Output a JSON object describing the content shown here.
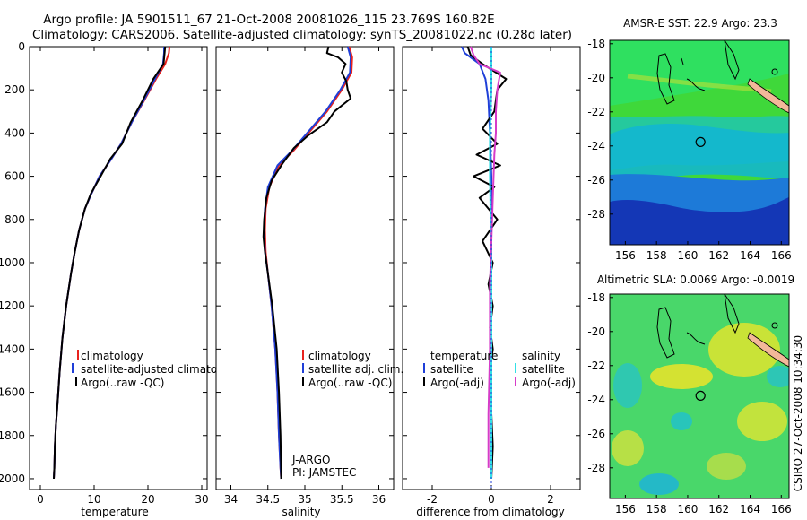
{
  "title_line1": "Argo profile: JA 5901511_67 21-Oct-2008 20081026_115 23.769S 160.82E",
  "title_line2": "Climatology: CARS2006. Satellite-adjusted climatology: synTS_20081022.nc (0.28d later)",
  "side_label": "CSIRO 27-Oct-2008 10:34:30",
  "colors": {
    "red": "#e8231e",
    "blue": "#1f3fd8",
    "black": "#000000",
    "cyan": "#33e0e6",
    "magenta": "#d63cc8",
    "coast": "#f3b89a"
  },
  "chart_data": [
    {
      "type": "line",
      "id": "temperature",
      "xlabel": "temperature",
      "xlim": [
        -2,
        31
      ],
      "xticks": [
        0,
        10,
        20,
        30
      ],
      "ylim": [
        2050,
        0
      ],
      "yticks": [
        0,
        200,
        400,
        600,
        800,
        1000,
        1200,
        1400,
        1600,
        1800,
        2000
      ],
      "legend": [
        "climatology",
        "satellite-adjusted climatology",
        "Argo(..raw -QC)"
      ],
      "series": [
        {
          "name": "climatology",
          "color": "red",
          "x": [
            24.0,
            23.9,
            23.2,
            21.5,
            19.3,
            17.0,
            15.0,
            13.2,
            11.0,
            9.5,
            8.3,
            7.2,
            6.4,
            5.7,
            4.8,
            4.1,
            3.6,
            3.2,
            2.9,
            2.7,
            2.6,
            2.5
          ],
          "y": [
            0,
            30,
            80,
            150,
            250,
            350,
            450,
            520,
            600,
            680,
            750,
            850,
            950,
            1050,
            1200,
            1350,
            1500,
            1650,
            1750,
            1850,
            1950,
            2000
          ]
        },
        {
          "name": "satellite-adjusted climatology",
          "color": "blue",
          "x": [
            23.0,
            23.0,
            22.8,
            21.3,
            19.2,
            17.0,
            15.0,
            13.2,
            11.0,
            9.5,
            8.3,
            7.2,
            6.4,
            5.7,
            4.8,
            4.1,
            3.6,
            3.2,
            2.9,
            2.7,
            2.6,
            2.5
          ],
          "y": [
            0,
            30,
            80,
            150,
            250,
            350,
            450,
            520,
            600,
            680,
            750,
            850,
            950,
            1050,
            1200,
            1350,
            1500,
            1650,
            1750,
            1850,
            1950,
            2000
          ]
        },
        {
          "name": "Argo(..raw -QC)",
          "color": "black",
          "x": [
            23.2,
            23.1,
            22.9,
            21.0,
            19.0,
            16.8,
            15.2,
            13.0,
            11.2,
            9.4,
            8.3,
            7.2,
            6.4,
            5.7,
            4.8,
            4.1,
            3.6,
            3.2,
            2.9,
            2.7,
            2.6,
            2.5
          ],
          "y": [
            0,
            30,
            80,
            150,
            250,
            350,
            450,
            520,
            600,
            680,
            750,
            850,
            950,
            1050,
            1200,
            1350,
            1500,
            1650,
            1750,
            1850,
            1950,
            2000
          ]
        }
      ]
    },
    {
      "type": "line",
      "id": "salinity",
      "xlabel": "salinity",
      "xlim": [
        33.8,
        36.2
      ],
      "xticks": [
        34,
        34.5,
        35,
        35.5,
        36
      ],
      "ylim": [
        2050,
        0
      ],
      "legend": [
        "climatology",
        "satellite adj. clim.",
        "Argo(..raw -QC)"
      ],
      "annotations": [
        "J-ARGO",
        "PI: JAMSTEC"
      ],
      "series": [
        {
          "name": "climatology",
          "color": "red",
          "x": [
            35.6,
            35.64,
            35.63,
            35.5,
            35.3,
            35.05,
            34.85,
            34.65,
            34.52,
            34.47,
            34.46,
            34.47,
            34.5,
            34.55,
            34.6,
            34.63,
            34.65,
            34.67,
            34.68
          ],
          "y": [
            0,
            50,
            120,
            200,
            300,
            400,
            480,
            550,
            650,
            750,
            850,
            950,
            1050,
            1200,
            1400,
            1600,
            1800,
            1950,
            2000
          ]
        },
        {
          "name": "satellite adj. clim.",
          "color": "blue",
          "x": [
            35.58,
            35.62,
            35.61,
            35.48,
            35.28,
            35.03,
            34.83,
            34.63,
            34.5,
            34.46,
            34.45,
            34.46,
            34.5,
            34.55,
            34.6,
            34.63,
            34.65,
            34.67,
            34.68
          ],
          "y": [
            0,
            50,
            120,
            200,
            300,
            400,
            480,
            550,
            650,
            750,
            850,
            950,
            1050,
            1200,
            1400,
            1600,
            1800,
            1950,
            2000
          ]
        },
        {
          "name": "Argo(..raw -QC)",
          "color": "black",
          "x": [
            35.32,
            35.3,
            35.45,
            35.55,
            35.5,
            35.56,
            35.58,
            35.62,
            35.4,
            35.3,
            35.05,
            34.85,
            34.7,
            34.55,
            34.48,
            34.45,
            34.44,
            34.46,
            34.5,
            34.56,
            34.62,
            34.65,
            34.67,
            34.68
          ],
          "y": [
            0,
            30,
            50,
            80,
            120,
            160,
            200,
            240,
            300,
            350,
            410,
            470,
            540,
            620,
            700,
            800,
            880,
            950,
            1050,
            1200,
            1400,
            1600,
            1800,
            2000
          ]
        }
      ]
    },
    {
      "type": "line",
      "id": "difference",
      "xlabel": "difference from climatology",
      "xlim": [
        -3,
        3
      ],
      "xticks": [
        -2,
        0,
        2
      ],
      "ylim": [
        2050,
        0
      ],
      "legend_temperature": [
        "temperature",
        "satellite",
        "Argo(-adj)"
      ],
      "legend_salinity": [
        "salinity",
        "satellite",
        "Argo(-adj)"
      ],
      "series": [
        {
          "name": "temperature satellite",
          "color": "blue",
          "x": [
            -1.0,
            -0.9,
            -0.4,
            -0.2,
            -0.1,
            -0.05,
            0,
            0,
            0,
            0
          ],
          "y": [
            0,
            30,
            80,
            150,
            250,
            400,
            600,
            1000,
            1500,
            2000
          ]
        },
        {
          "name": "temperature Argo(-adj)",
          "color": "black",
          "x": [
            -0.8,
            -0.7,
            -0.3,
            0.5,
            0.2,
            0.1,
            -0.3,
            0.2,
            -0.5,
            0.3,
            -0.6,
            0.1,
            -0.4,
            0.2,
            -0.3,
            0.05,
            -0.1,
            0.05,
            -0.05,
            0.05,
            -0.05,
            0,
            0.05,
            0
          ],
          "y": [
            0,
            40,
            80,
            150,
            200,
            300,
            380,
            450,
            500,
            550,
            600,
            650,
            700,
            800,
            900,
            1000,
            1100,
            1200,
            1300,
            1400,
            1500,
            1700,
            1850,
            2000
          ]
        },
        {
          "name": "salinity satellite",
          "color": "cyan",
          "x": [
            0,
            0,
            0,
            -0.05,
            -0.05,
            0,
            0,
            0,
            0
          ],
          "y": [
            0,
            100,
            200,
            400,
            600,
            1000,
            1500,
            1800,
            2000
          ]
        },
        {
          "name": "salinity Argo(-adj)",
          "color": "magenta",
          "x": [
            -0.7,
            -0.6,
            -0.4,
            0.3,
            0.2,
            0.15,
            0.15,
            0.1,
            0.05,
            0,
            -0.05,
            -0.05,
            -0.1,
            -0.1
          ],
          "y": [
            0,
            40,
            80,
            120,
            200,
            300,
            400,
            500,
            700,
            900,
            1100,
            1400,
            1700,
            1950
          ]
        }
      ]
    },
    {
      "type": "heatmap",
      "id": "sst-map",
      "title": "AMSR-E SST: 22.9 Argo: 23.3",
      "xlim": [
        155,
        166.5
      ],
      "xticks": [
        156,
        158,
        160,
        162,
        164,
        166
      ],
      "ylim": [
        -29.8,
        -17.8
      ],
      "yticks": [
        -18,
        -20,
        -22,
        -24,
        -26,
        -28
      ],
      "marker": {
        "lon": 160.82,
        "lat": -23.769
      }
    },
    {
      "type": "heatmap",
      "id": "sla-map",
      "title": "Altimetric SLA: 0.0069 Argo: -0.0019",
      "xlim": [
        155,
        166.5
      ],
      "xticks": [
        156,
        158,
        160,
        162,
        164,
        166
      ],
      "ylim": [
        -29.8,
        -17.8
      ],
      "yticks": [
        -18,
        -20,
        -22,
        -24,
        -26,
        -28
      ],
      "marker": {
        "lon": 160.82,
        "lat": -23.769
      }
    }
  ]
}
